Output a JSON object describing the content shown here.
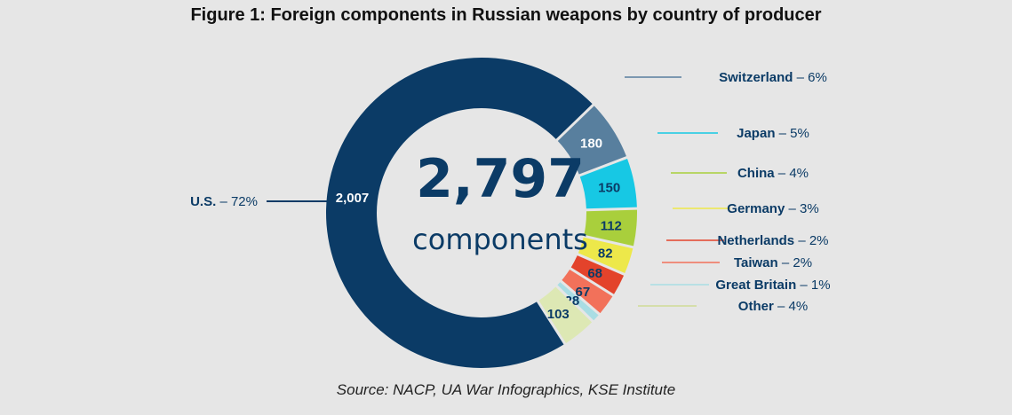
{
  "chart_data": {
    "type": "pie",
    "style": "donut",
    "title": "Figure 1: Foreign components in Russian weapons by country of producer",
    "center_value": "2,797",
    "center_label": "components",
    "source": "Source: NACP, UA War Infographics, KSE Institute",
    "slices": [
      {
        "name": "U.S.",
        "value": 2007,
        "value_label": "2,007",
        "percent": "72%",
        "color": "#0b3b66",
        "text_color": "#ffffff"
      },
      {
        "name": "Switzerland",
        "value": 180,
        "value_label": "180",
        "percent": "6%",
        "color": "#587f9e",
        "text_color": "#ffffff"
      },
      {
        "name": "Japan",
        "value": 150,
        "value_label": "150",
        "percent": "5%",
        "color": "#17c8e4",
        "text_color": "#0b3b66"
      },
      {
        "name": "China",
        "value": 112,
        "value_label": "112",
        "percent": "4%",
        "color": "#a9cf3c",
        "text_color": "#0b3b66"
      },
      {
        "name": "Germany",
        "value": 82,
        "value_label": "82",
        "percent": "3%",
        "color": "#ede84a",
        "text_color": "#0b3b66"
      },
      {
        "name": "Netherlands",
        "value": 68,
        "value_label": "68",
        "percent": "2%",
        "color": "#e3432b",
        "text_color": "#0b3b66"
      },
      {
        "name": "Taiwan",
        "value": 67,
        "value_label": "67",
        "percent": "2%",
        "color": "#f2715a",
        "text_color": "#0b3b66"
      },
      {
        "name": "Great Britain",
        "value": 28,
        "value_label": "28",
        "percent": "1%",
        "color": "#a9dde4",
        "text_color": "#0b3b66"
      },
      {
        "name": "Other",
        "value": 103,
        "value_label": "103",
        "percent": "4%",
        "color": "#dde8b4",
        "text_color": "#0b3b66"
      }
    ]
  }
}
